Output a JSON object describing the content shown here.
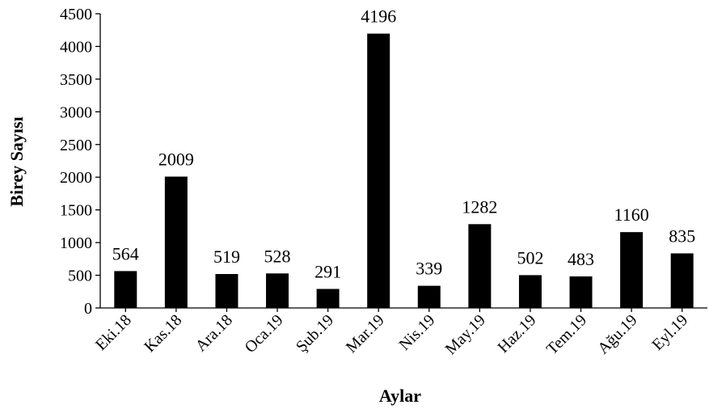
{
  "chart_data": {
    "type": "bar",
    "categories": [
      "Eki.18",
      "Kas.18",
      "Ara.18",
      "Oca.19",
      "Şub.19",
      "Mar.19",
      "Nis.19",
      "May.19",
      "Haz.19",
      "Tem.19",
      "Ağu.19",
      "Eyl.19"
    ],
    "values": [
      564,
      2009,
      519,
      528,
      291,
      4196,
      339,
      1282,
      502,
      483,
      1160,
      835
    ],
    "xlabel": "Aylar",
    "ylabel": "Birey Sayısı",
    "ylim": [
      0,
      4500
    ],
    "yticks": [
      0,
      500,
      1000,
      1500,
      2000,
      2500,
      3000,
      3500,
      4000,
      4500
    ],
    "grid": false,
    "legend": "none",
    "bar_color": "#000000"
  }
}
